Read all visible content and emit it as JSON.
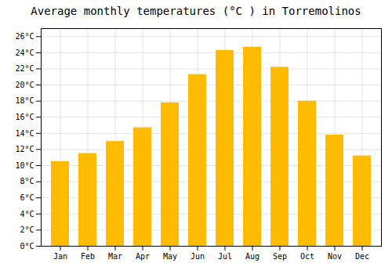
{
  "chart_data": {
    "type": "bar",
    "title": "Average monthly temperatures (°C ) in Torremolinos",
    "categories": [
      "Jan",
      "Feb",
      "Mar",
      "Apr",
      "May",
      "Jun",
      "Jul",
      "Aug",
      "Sep",
      "Oct",
      "Nov",
      "Dec"
    ],
    "values": [
      10.5,
      11.5,
      13.0,
      14.7,
      17.8,
      21.3,
      24.3,
      24.7,
      22.2,
      18.0,
      13.8,
      11.2
    ],
    "color": "#FFBB00",
    "ylim": [
      0,
      27
    ],
    "yticks": [
      {
        "value": 0,
        "label": "0°C"
      },
      {
        "value": 2,
        "label": "2°C"
      },
      {
        "value": 4,
        "label": "4°C"
      },
      {
        "value": 6,
        "label": "6°C"
      },
      {
        "value": 8,
        "label": "8°C"
      },
      {
        "value": 10,
        "label": "10°C"
      },
      {
        "value": 12,
        "label": "12°C"
      },
      {
        "value": 14,
        "label": "14°C"
      },
      {
        "value": 16,
        "label": "16°C"
      },
      {
        "value": 18,
        "label": "18°C"
      },
      {
        "value": 20,
        "label": "20°C"
      },
      {
        "value": 22,
        "label": "22°C"
      },
      {
        "value": 24,
        "label": "24°C"
      },
      {
        "value": 26,
        "label": "26°C"
      }
    ],
    "grid": true
  }
}
